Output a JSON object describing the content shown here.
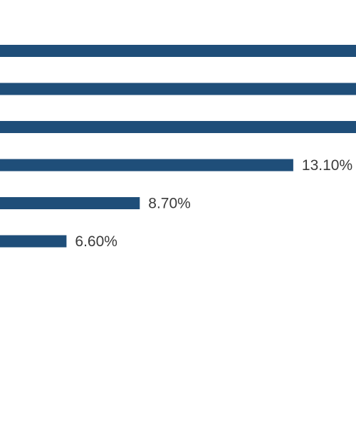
{
  "chart_data": {
    "type": "bar",
    "orientation": "horizontal",
    "bar_color": "#1f4e79",
    "label_color": "#3a3a3a",
    "background": "#ffffff",
    "legend": "none",
    "grid": false,
    "series": [
      {
        "values": [
          null,
          null,
          null,
          13.1,
          8.7,
          6.6
        ],
        "labels": [
          "",
          "",
          "",
          "13.10%",
          "8.70%",
          "6.60%"
        ]
      }
    ]
  }
}
